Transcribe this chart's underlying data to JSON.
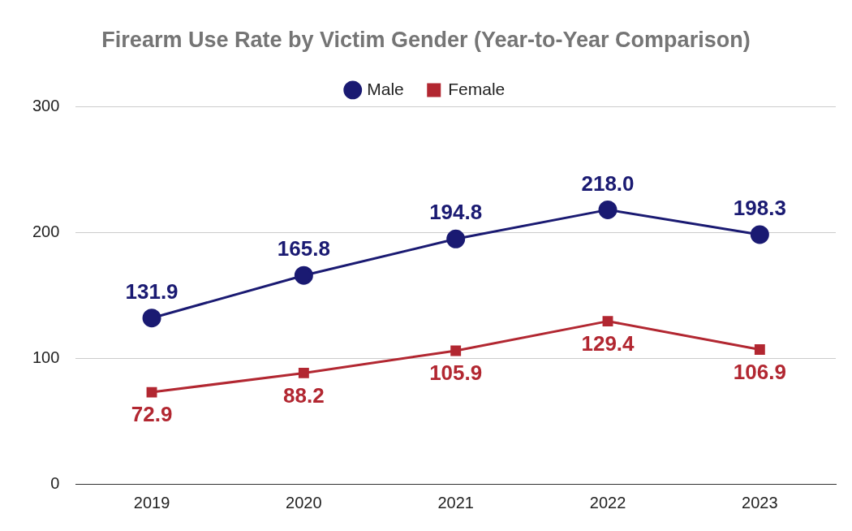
{
  "chart_data": {
    "type": "line",
    "title": "Firearm Use Rate by Victim Gender (Year-to-Year Comparison)",
    "categories": [
      "2019",
      "2020",
      "2021",
      "2022",
      "2023"
    ],
    "series": [
      {
        "name": "Male",
        "color": "#1a1a72",
        "values": [
          131.9,
          165.8,
          194.8,
          218.0,
          198.3
        ],
        "value_labels": [
          "131.9",
          "165.8",
          "194.8",
          "218.0",
          "198.3"
        ],
        "marker": "circle"
      },
      {
        "name": "Female",
        "color": "#b22731",
        "values": [
          72.9,
          88.2,
          105.9,
          129.4,
          106.9
        ],
        "value_labels": [
          "72.9",
          "88.2",
          "105.9",
          "129.4",
          "106.9"
        ],
        "marker": "square"
      }
    ],
    "ylim": [
      0,
      300
    ],
    "yticks": [
      0,
      100,
      200,
      300
    ],
    "grid": "y",
    "legend": "top",
    "line_style": "solid"
  }
}
